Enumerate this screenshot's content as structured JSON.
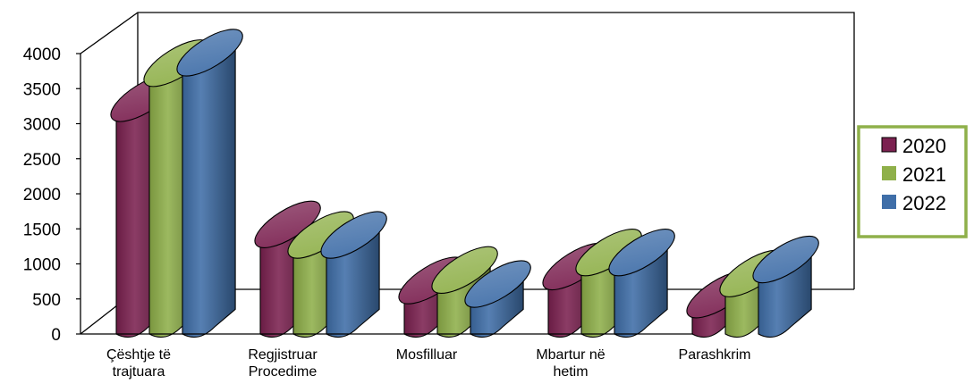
{
  "chart_data": {
    "type": "bar",
    "style": "3d-cylinder",
    "categories": [
      [
        "Çështje të",
        "trajtuara"
      ],
      [
        "Regjistruar",
        "Procedime"
      ],
      [
        "Mosfilluar"
      ],
      [
        "Mbartur në",
        "hetim"
      ],
      [
        "Parashkrim"
      ]
    ],
    "series": [
      {
        "name": "2020",
        "color": "#7B2150",
        "values": [
          3200,
          1400,
          600,
          800,
          400
        ]
      },
      {
        "name": "2021",
        "color": "#8FB04A",
        "values": [
          3700,
          1250,
          750,
          1000,
          700
        ]
      },
      {
        "name": "2022",
        "color": "#3F6EA8",
        "values": [
          3850,
          1250,
          550,
          1000,
          900
        ]
      }
    ],
    "yticks": [
      "0",
      "500",
      "1000",
      "1500",
      "2000",
      "2500",
      "3000",
      "3500",
      "4000"
    ],
    "ylim": [
      0,
      4000
    ],
    "grid": false,
    "legend_position": "right"
  }
}
